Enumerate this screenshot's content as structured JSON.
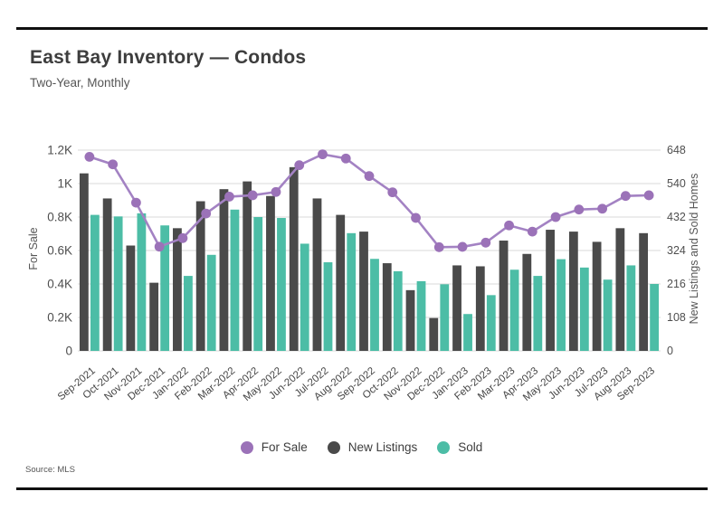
{
  "page": {
    "title": "East Bay Inventory — Condos",
    "subtitle": "Two-Year, Monthly",
    "source": "Source: MLS"
  },
  "chart_data": {
    "type": "bar+line combo, dual axis",
    "categories": [
      "Sep-2021",
      "Oct-2021",
      "Nov-2021",
      "Dec-2021",
      "Jan-2022",
      "Feb-2022",
      "Mar-2022",
      "Apr-2022",
      "May-2022",
      "Jun-2022",
      "Jul-2022",
      "Aug-2022",
      "Sep-2022",
      "Oct-2022",
      "Nov-2022",
      "Dec-2022",
      "Jan-2023",
      "Feb-2023",
      "Mar-2023",
      "Apr-2023",
      "May-2023",
      "Jun-2023",
      "Jul-2023",
      "Aug-2023",
      "Sep-2023"
    ],
    "series": [
      {
        "name": "For Sale",
        "type": "line",
        "axis": "left",
        "color": "#a382c3",
        "marker_color": "#9b72b8",
        "values": [
          1160,
          1115,
          886,
          623,
          674,
          821,
          922,
          930,
          950,
          1110,
          1175,
          1150,
          1045,
          948,
          795,
          620,
          622,
          647,
          750,
          713,
          800,
          845,
          850,
          926,
          930
        ]
      },
      {
        "name": "New Listings",
        "type": "bar",
        "axis": "right",
        "color": "#4a4a4a",
        "values": [
          573,
          492,
          340,
          220,
          396,
          483,
          522,
          547,
          500,
          593,
          492,
          439,
          385,
          283,
          196,
          106,
          276,
          273,
          356,
          313,
          391,
          385,
          352,
          396,
          380
        ]
      },
      {
        "name": "Sold",
        "type": "bar",
        "axis": "right",
        "color": "#4cbda6",
        "values": [
          439,
          434,
          444,
          405,
          242,
          310,
          456,
          432,
          429,
          346,
          286,
          380,
          297,
          257,
          225,
          215,
          119,
          180,
          262,
          242,
          296,
          269,
          230,
          276,
          216
        ]
      }
    ],
    "left_axis": {
      "label": "For Sale",
      "tick_labels": [
        "0",
        "0.2K",
        "0.4K",
        "0.6K",
        "0.8K",
        "1K",
        "1.2K"
      ],
      "tick_values": [
        0,
        200,
        400,
        600,
        800,
        1000,
        1200
      ],
      "max": 1200
    },
    "right_axis": {
      "label": "New Listings and Sold Homes",
      "tick_values": [
        0,
        108,
        216,
        324,
        432,
        540,
        648
      ],
      "max": 648
    },
    "grid": "horizontal only, light gray",
    "legend_position": "bottom center",
    "x_label_rotation": -40
  }
}
